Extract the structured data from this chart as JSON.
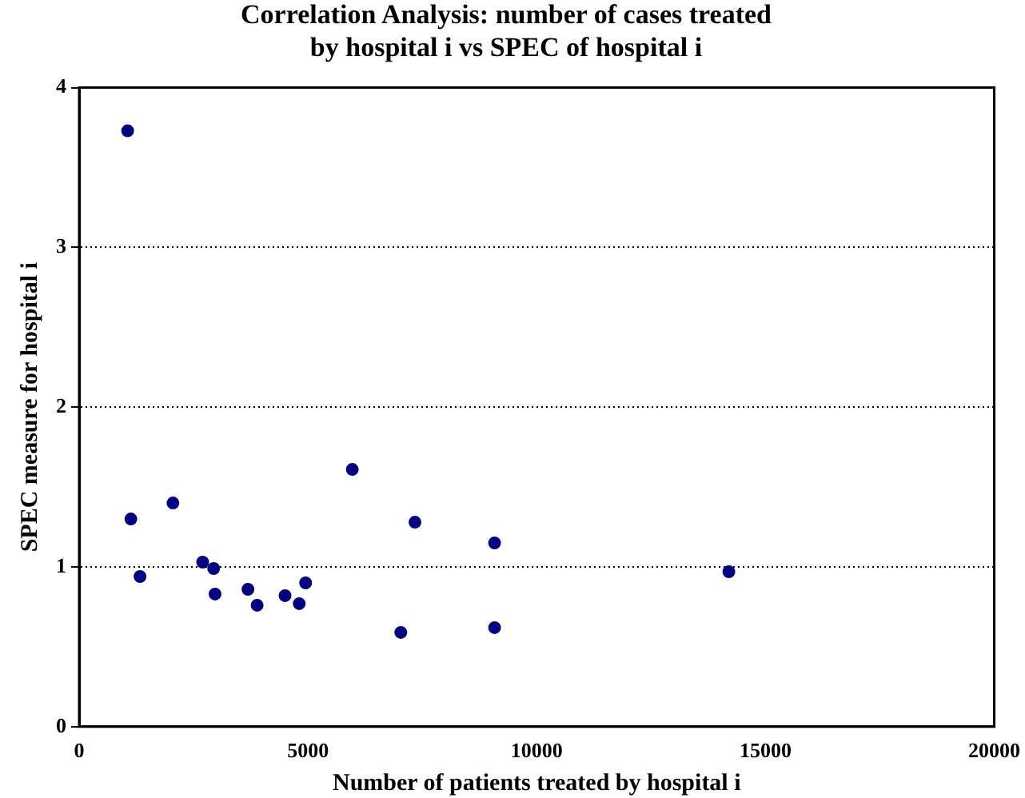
{
  "chart_data": {
    "type": "scatter",
    "title": "Correlation Analysis: number of cases treated\nby hospital i vs SPEC of hospital i",
    "xlabel": "Number of patients treated by hospital i",
    "ylabel": "SPEC measure for hospital i",
    "x": [
      1060,
      1130,
      1330,
      2050,
      2700,
      2940,
      2970,
      3690,
      3890,
      4500,
      4810,
      4950,
      5970,
      7030,
      7340,
      9080,
      9080,
      14200
    ],
    "series": [
      {
        "color": "#000080",
        "values": [
          3.73,
          1.3,
          0.94,
          1.4,
          1.03,
          0.99,
          0.83,
          0.86,
          0.76,
          0.82,
          0.77,
          0.9,
          1.61,
          0.59,
          1.28,
          1.15,
          0.62,
          0.97
        ]
      }
    ],
    "xlim": [
      0,
      20000
    ],
    "xticks": [
      0,
      5000,
      10000,
      15000,
      20000
    ],
    "ylim": [
      0,
      4
    ],
    "yticks": [
      0,
      1,
      2,
      3,
      4
    ],
    "grid": "y",
    "marker": "circle",
    "legend": false
  }
}
